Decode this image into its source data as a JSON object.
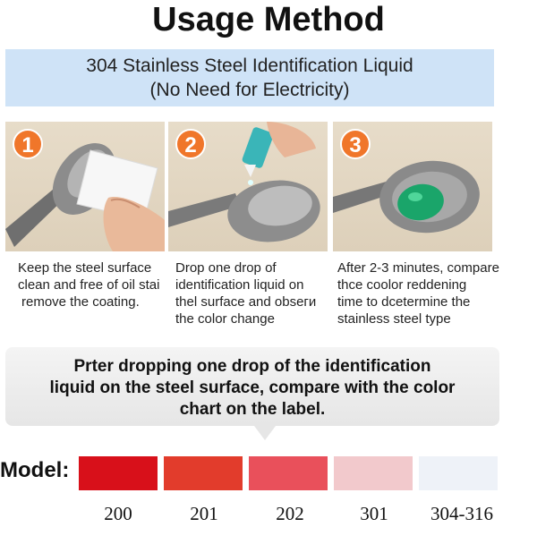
{
  "header": {
    "title": "Usage Method"
  },
  "banner": {
    "line1": "304 Stainless Steel Identification Liquid",
    "line2": "(No Need for Electricity)"
  },
  "steps": [
    {
      "number": "1",
      "lines": [
        "Keep the steel surface",
        "clean and free of oil stai",
        "remove the coating."
      ]
    },
    {
      "number": "2",
      "lines": [
        "Drop one drop of",
        "identification liquid on",
        "thel surface and obseги",
        "the color change"
      ]
    },
    {
      "number": "3",
      "lines": [
        "After 2-3 minutes, compare",
        "thce coolor reddening",
        "time to dcetermine the",
        "stainless steel type"
      ]
    }
  ],
  "callout": {
    "line1": "Prter dropping one drop of the identification",
    "line2": "liquid on the steel surface, compare with the color",
    "line3": "chart on the label."
  },
  "model": {
    "label": "Model:",
    "swatches": [
      {
        "grade": "200",
        "color": "#d8101a"
      },
      {
        "grade": "201",
        "color": "#e23c2c"
      },
      {
        "grade": "202",
        "color": "#e9505b"
      },
      {
        "grade": "301",
        "color": "#f2c9cc"
      },
      {
        "grade": "304-316",
        "color": "#eef2f8"
      }
    ]
  },
  "colors": {
    "badge": "#f0762a",
    "banner": "#cfe3f7",
    "liquid": "#1aa56a"
  },
  "icons": {
    "step_badge": "numbered-circle-badge"
  }
}
